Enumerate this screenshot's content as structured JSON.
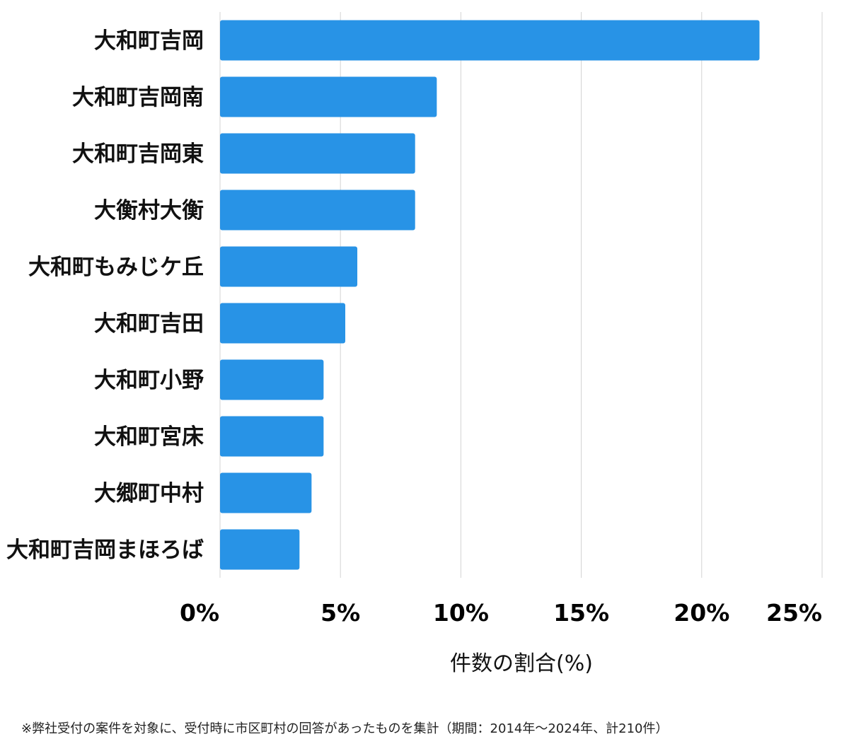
{
  "chart_data": {
    "type": "bar",
    "orientation": "horizontal",
    "categories": [
      "大和町吉岡",
      "大和町吉岡南",
      "大和町吉岡東",
      "大衡村大衡",
      "大和町もみじケ丘",
      "大和町吉田",
      "大和町小野",
      "大和町宮床",
      "大郷町中村",
      "大和町吉岡まほろば"
    ],
    "values": [
      22.4,
      9.0,
      8.1,
      8.1,
      5.7,
      5.2,
      4.3,
      4.3,
      3.8,
      3.3
    ],
    "xlim": [
      0,
      25
    ],
    "xticks": [
      0,
      5,
      10,
      15,
      20,
      25
    ],
    "xtick_labels": [
      "0%",
      "5%",
      "10%",
      "15%",
      "20%",
      "25%"
    ],
    "xlabel": "件数の割合(%)",
    "ylabel": "",
    "grid": true,
    "bar_color": "#2893e6",
    "grid_color": "#d3d3d3"
  },
  "footnote": "※弊社受付の案件を対象に、受付時に市区町村の回答があったものを集計（期間：2014年〜2024年、計210件）"
}
